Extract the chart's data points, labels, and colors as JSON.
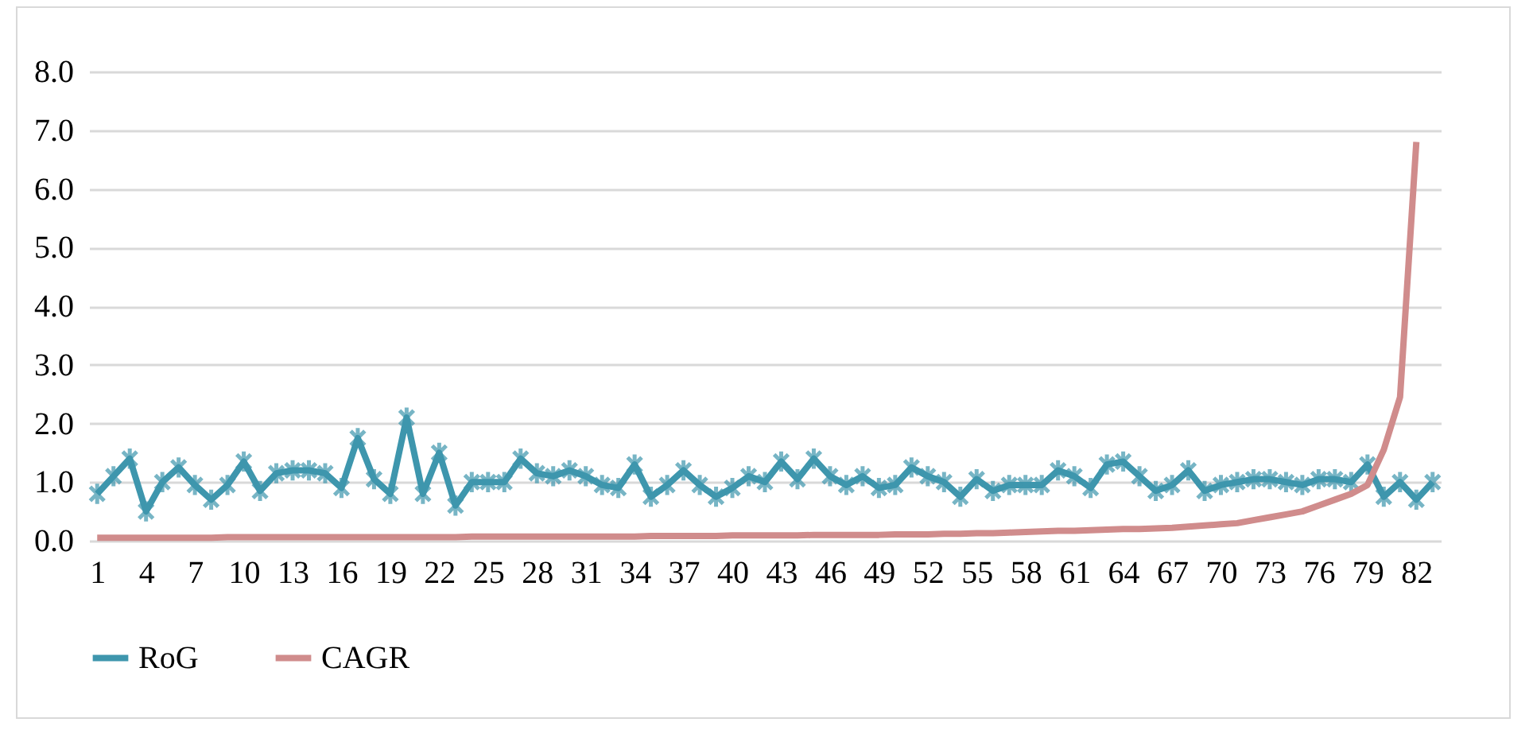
{
  "chart_data": {
    "type": "line",
    "categories": [
      "1",
      null,
      null,
      "4",
      null,
      null,
      "7",
      null,
      null,
      "10",
      null,
      null,
      "13",
      null,
      null,
      "16",
      null,
      null,
      "19",
      null,
      null,
      "22",
      null,
      null,
      "25",
      null,
      null,
      "28",
      null,
      null,
      "31",
      null,
      null,
      "34",
      null,
      null,
      "37",
      null,
      null,
      "40",
      null,
      null,
      "43",
      null,
      null,
      "46",
      null,
      null,
      "49",
      null,
      null,
      "52",
      null,
      null,
      "55",
      null,
      null,
      "58",
      null,
      null,
      "61",
      null,
      null,
      "64",
      null,
      null,
      "67",
      null,
      null,
      "70",
      null,
      null,
      "73",
      null,
      null,
      "76",
      null,
      null,
      "79",
      null,
      null,
      "82",
      null
    ],
    "series": [
      {
        "name": "RoG",
        "color": "#3e96ad",
        "marker": "cross",
        "values": [
          0.8,
          1.1,
          1.4,
          0.5,
          1.0,
          1.25,
          0.95,
          0.7,
          0.95,
          1.35,
          0.85,
          1.15,
          1.2,
          1.2,
          1.15,
          0.9,
          1.75,
          1.05,
          0.8,
          2.1,
          0.8,
          1.5,
          0.6,
          1.0,
          1.0,
          1.0,
          1.4,
          1.15,
          1.1,
          1.2,
          1.1,
          0.95,
          0.9,
          1.3,
          0.75,
          0.95,
          1.2,
          0.95,
          0.75,
          0.9,
          1.1,
          1.0,
          1.35,
          1.05,
          1.4,
          1.1,
          0.95,
          1.1,
          0.9,
          0.95,
          1.25,
          1.1,
          1.0,
          0.75,
          1.05,
          0.85,
          0.95,
          0.95,
          0.95,
          1.2,
          1.1,
          0.9,
          1.3,
          1.35,
          1.1,
          0.85,
          0.95,
          1.2,
          0.85,
          0.95,
          1.0,
          1.05,
          1.05,
          1.0,
          0.95,
          1.05,
          1.05,
          1.0,
          1.3,
          0.75,
          1.0,
          0.7,
          1.0
        ]
      },
      {
        "name": "CAGR",
        "color": "#d08c8c",
        "marker": "none",
        "values": [
          0.05,
          0.05,
          0.05,
          0.05,
          0.05,
          0.05,
          0.05,
          0.05,
          0.06,
          0.06,
          0.06,
          0.06,
          0.06,
          0.06,
          0.06,
          0.06,
          0.06,
          0.06,
          0.06,
          0.06,
          0.06,
          0.06,
          0.06,
          0.07,
          0.07,
          0.07,
          0.07,
          0.07,
          0.07,
          0.07,
          0.07,
          0.07,
          0.07,
          0.07,
          0.08,
          0.08,
          0.08,
          0.08,
          0.08,
          0.09,
          0.09,
          0.09,
          0.09,
          0.09,
          0.1,
          0.1,
          0.1,
          0.1,
          0.1,
          0.11,
          0.11,
          0.11,
          0.12,
          0.12,
          0.13,
          0.13,
          0.14,
          0.15,
          0.16,
          0.17,
          0.17,
          0.18,
          0.19,
          0.2,
          0.2,
          0.21,
          0.22,
          0.24,
          0.26,
          0.28,
          0.3,
          0.35,
          0.4,
          0.45,
          0.5,
          0.6,
          0.7,
          0.8,
          0.95,
          1.55,
          2.45,
          6.8,
          null
        ]
      }
    ],
    "ylim": [
      0,
      8
    ],
    "yticks": [
      {
        "value": 0,
        "label": "0.0"
      },
      {
        "value": 1,
        "label": "1.0"
      },
      {
        "value": 2,
        "label": "2.0"
      },
      {
        "value": 3,
        "label": "3.0"
      },
      {
        "value": 4,
        "label": "4.0"
      },
      {
        "value": 5,
        "label": "5.0"
      },
      {
        "value": 6,
        "label": "6.0"
      },
      {
        "value": 7,
        "label": "7.0"
      },
      {
        "value": 8,
        "label": "8.0"
      }
    ],
    "grid": "y",
    "legend": "bottom",
    "line_style": "solid"
  }
}
